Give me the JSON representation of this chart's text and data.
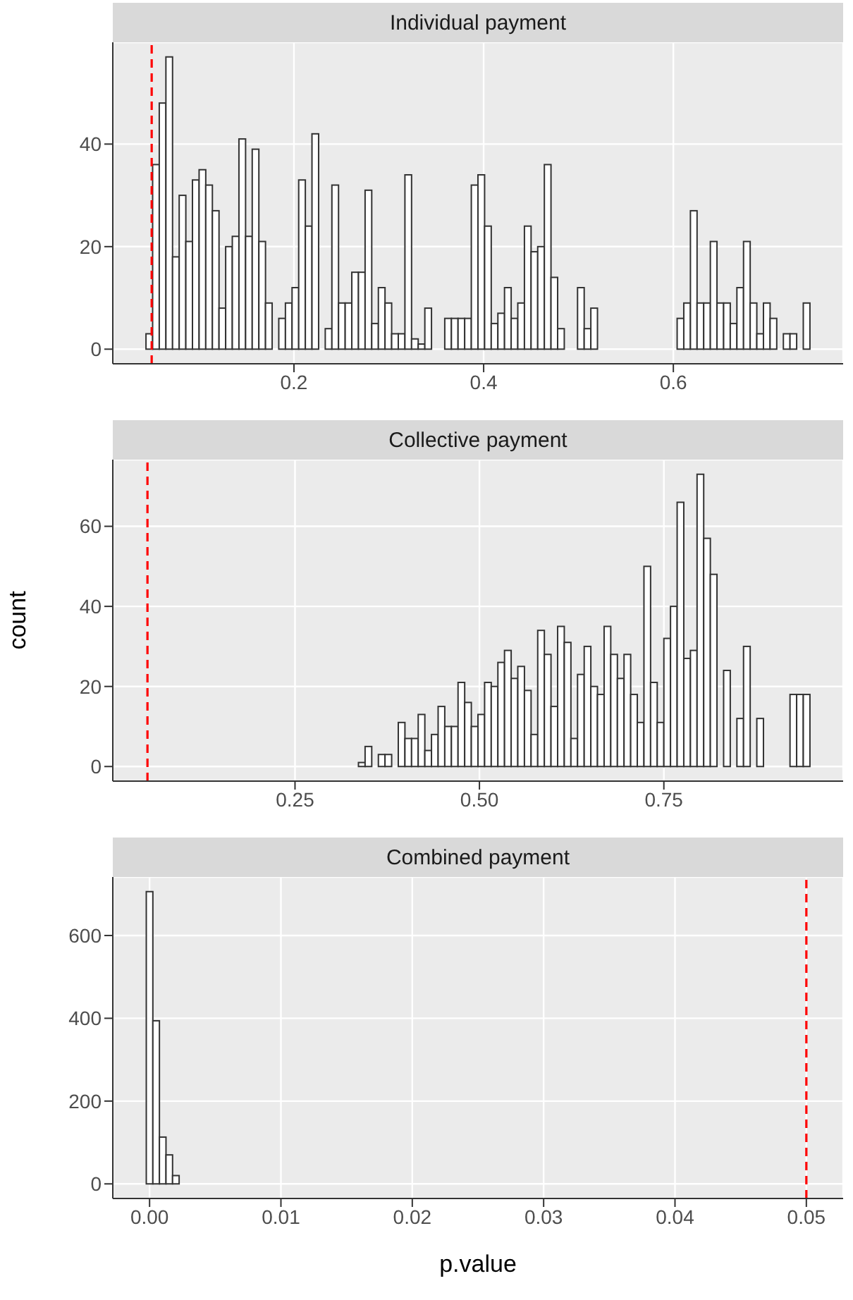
{
  "chart_data": [
    {
      "type": "histogram",
      "title": "Individual payment",
      "color": "#333333",
      "grid": true,
      "bins": [
        0.044,
        0.051,
        0.058,
        0.065,
        0.072,
        0.079,
        0.086,
        0.093,
        0.1,
        0.107,
        0.114,
        0.121,
        0.128,
        0.135,
        0.142,
        0.149,
        0.156,
        0.163,
        0.17,
        0.177,
        0.184,
        0.191,
        0.198,
        0.205,
        0.212,
        0.219,
        0.226,
        0.233,
        0.24,
        0.247,
        0.254,
        0.261,
        0.268,
        0.275,
        0.282,
        0.289,
        0.296,
        0.303,
        0.31,
        0.317,
        0.324,
        0.331,
        0.338,
        0.345,
        0.352,
        0.359,
        0.366,
        0.373,
        0.38,
        0.387,
        0.394,
        0.401,
        0.408,
        0.415,
        0.422,
        0.429,
        0.436,
        0.443,
        0.45,
        0.457,
        0.464,
        0.471,
        0.478,
        0.485,
        0.492,
        0.499,
        0.506,
        0.513,
        0.52,
        0.527,
        0.534,
        0.541,
        0.548,
        0.555,
        0.562,
        0.569,
        0.576,
        0.583,
        0.59,
        0.597,
        0.604,
        0.611,
        0.618,
        0.625,
        0.632,
        0.639,
        0.646,
        0.653,
        0.66,
        0.667,
        0.674,
        0.681,
        0.688,
        0.695,
        0.702,
        0.709,
        0.716,
        0.723,
        0.73,
        0.737,
        0.744
      ],
      "values": [
        3,
        36,
        48,
        57,
        18,
        30,
        21,
        33,
        35,
        32,
        27,
        8,
        20,
        22,
        41,
        22,
        39,
        21,
        9,
        0,
        6,
        9,
        12,
        33,
        24,
        42,
        0,
        4,
        32,
        9,
        9,
        15,
        15,
        31,
        5,
        12,
        9,
        3,
        3,
        34,
        2,
        1,
        8,
        0,
        0,
        6,
        6,
        6,
        6,
        32,
        34,
        24,
        5,
        7,
        12,
        6,
        9,
        24,
        19,
        20,
        36,
        14,
        4,
        0,
        0,
        12,
        4,
        8,
        0,
        0,
        0,
        0,
        0,
        0,
        0,
        0,
        0,
        0,
        0,
        0,
        6,
        9,
        27,
        9,
        9,
        21,
        9,
        9,
        5,
        12,
        21,
        9,
        3,
        9,
        6,
        0,
        3,
        3,
        0,
        9
      ],
      "xlim": [
        0.009,
        0.779
      ],
      "xticks": [
        0.2,
        0.4,
        0.6
      ],
      "ylim": [
        -2.85,
        59.85
      ],
      "yticks": [
        0,
        20,
        40
      ],
      "ref_lines": [
        {
          "axis": "x",
          "value": 0.05,
          "color": "#ff0000",
          "line_style": "dashed"
        }
      ]
    },
    {
      "type": "histogram",
      "title": "Collective payment",
      "ylabel": "count",
      "color": "#333333",
      "grid": true,
      "bins": [
        0.048,
        0.057,
        0.066,
        0.075,
        0.084,
        0.093,
        0.102,
        0.111,
        0.12,
        0.129,
        0.138,
        0.147,
        0.156,
        0.165,
        0.174,
        0.183,
        0.192,
        0.201,
        0.21,
        0.219,
        0.228,
        0.237,
        0.246,
        0.255,
        0.264,
        0.273,
        0.282,
        0.291,
        0.3,
        0.309,
        0.318,
        0.327,
        0.336,
        0.345,
        0.354,
        0.363,
        0.372,
        0.381,
        0.39,
        0.399,
        0.408,
        0.417,
        0.426,
        0.435,
        0.444,
        0.453,
        0.462,
        0.471,
        0.48,
        0.489,
        0.498,
        0.507,
        0.516,
        0.525,
        0.534,
        0.543,
        0.552,
        0.561,
        0.57,
        0.579,
        0.588,
        0.597,
        0.606,
        0.615,
        0.624,
        0.633,
        0.642,
        0.651,
        0.66,
        0.669,
        0.678,
        0.687,
        0.696,
        0.705,
        0.714,
        0.723,
        0.732,
        0.741,
        0.75,
        0.759,
        0.768,
        0.777,
        0.786,
        0.795,
        0.804,
        0.813,
        0.822,
        0.831,
        0.84,
        0.849,
        0.858,
        0.867,
        0.876,
        0.885,
        0.894,
        0.903,
        0.912,
        0.921,
        0.93,
        0.939,
        0.948
      ],
      "values": [
        0,
        0,
        0,
        0,
        0,
        0,
        0,
        0,
        0,
        0,
        0,
        0,
        0,
        0,
        0,
        0,
        0,
        0,
        0,
        0,
        0,
        0,
        0,
        0,
        0,
        0,
        0,
        0,
        0,
        0,
        0,
        0,
        1,
        5,
        0,
        3,
        3,
        0,
        11,
        7,
        7,
        13,
        4,
        8,
        15,
        10,
        10,
        21,
        16,
        10,
        13,
        21,
        20,
        26,
        29,
        22,
        25,
        19,
        8,
        34,
        28,
        15,
        35,
        31,
        7,
        23,
        30,
        20,
        18,
        35,
        28,
        22,
        28,
        18,
        11,
        50,
        21,
        11,
        32,
        40,
        66,
        27,
        29,
        73,
        57,
        48,
        0,
        24,
        0,
        12,
        30,
        0,
        12,
        0,
        0,
        0,
        0,
        18,
        18,
        18
      ],
      "xlim": [
        0.003,
        0.993
      ],
      "xticks": [
        0.25,
        {
          "value": 0.5,
          "label": "0.50"
        },
        0.75
      ],
      "ylim": [
        -3.65,
        76.65
      ],
      "yticks": [
        0,
        20,
        40,
        60
      ],
      "ref_lines": [
        {
          "axis": "x",
          "value": 0.05,
          "color": "#ff0000",
          "line_style": "dashed"
        }
      ]
    },
    {
      "type": "histogram",
      "title": "Combined payment",
      "xlabel": "p.value",
      "color": "#333333",
      "grid": true,
      "bins": [
        -0.00025,
        0.00025,
        0.00075,
        0.00125,
        0.00175,
        0.00225,
        0.00275,
        0.00325,
        0.00375,
        0.00425,
        0.00475,
        0.00525,
        0.00575,
        0.00625,
        0.00675,
        0.00725,
        0.00775,
        0.00825,
        0.00875,
        0.00925,
        0.00975,
        0.01025,
        0.01075,
        0.01125,
        0.01175,
        0.01225,
        0.01275,
        0.01325,
        0.01375,
        0.01425,
        0.01475,
        0.01525,
        0.01575,
        0.01625,
        0.01675,
        0.01725,
        0.01775,
        0.01825,
        0.01875,
        0.01925,
        0.01975,
        0.02025,
        0.02075,
        0.02125,
        0.02175,
        0.02225,
        0.02275,
        0.02325,
        0.02375,
        0.02425,
        0.02475,
        0.02525,
        0.02575,
        0.02625,
        0.02675,
        0.02725,
        0.02775,
        0.02825,
        0.02875,
        0.02925,
        0.02975,
        0.03025,
        0.03075,
        0.03125,
        0.03175,
        0.03225,
        0.03275,
        0.03325,
        0.03375,
        0.03425,
        0.03475,
        0.03525,
        0.03575,
        0.03625,
        0.03675,
        0.03725,
        0.03775,
        0.03825,
        0.03875,
        0.03925,
        0.03975,
        0.04025,
        0.04075,
        0.04125,
        0.04175,
        0.04225,
        0.04275,
        0.04325,
        0.04375,
        0.04425,
        0.04475,
        0.04525,
        0.04575,
        0.04625,
        0.04675,
        0.04725,
        0.04775,
        0.04825,
        0.04875,
        0.04925,
        0.04975,
        0.05025
      ],
      "values": [
        706,
        394,
        113,
        70,
        20,
        0,
        0,
        0,
        0,
        0,
        0,
        0,
        0,
        0,
        0,
        0,
        0,
        0,
        0,
        0,
        0,
        0,
        0,
        0,
        0,
        0,
        0,
        0,
        0,
        0,
        0,
        0,
        0,
        0,
        0,
        0,
        0,
        0,
        0,
        0,
        0,
        0,
        0,
        0,
        0,
        0,
        0,
        0,
        0,
        0,
        0,
        0,
        0,
        0,
        0,
        0,
        0,
        0,
        0,
        0,
        0,
        0,
        0,
        0,
        0,
        0,
        0,
        0,
        0,
        0,
        0,
        0,
        0,
        0,
        0,
        0,
        0,
        0,
        0,
        0,
        0,
        0,
        0,
        0,
        0,
        0,
        0,
        0,
        0,
        0,
        0,
        0,
        0,
        0,
        0,
        0,
        0,
        0,
        0,
        0,
        0
      ],
      "xlim": [
        -0.0028,
        0.0528
      ],
      "xticks": [
        {
          "value": 0,
          "label": "0.00"
        },
        0.01,
        0.02,
        0.03,
        0.04,
        0.05
      ],
      "ylim": [
        -35.3,
        741.3
      ],
      "yticks": [
        0,
        200,
        400,
        600
      ],
      "ref_lines": [
        {
          "axis": "x",
          "value": 0.05,
          "color": "#ff0000",
          "line_style": "dashed"
        }
      ]
    }
  ]
}
